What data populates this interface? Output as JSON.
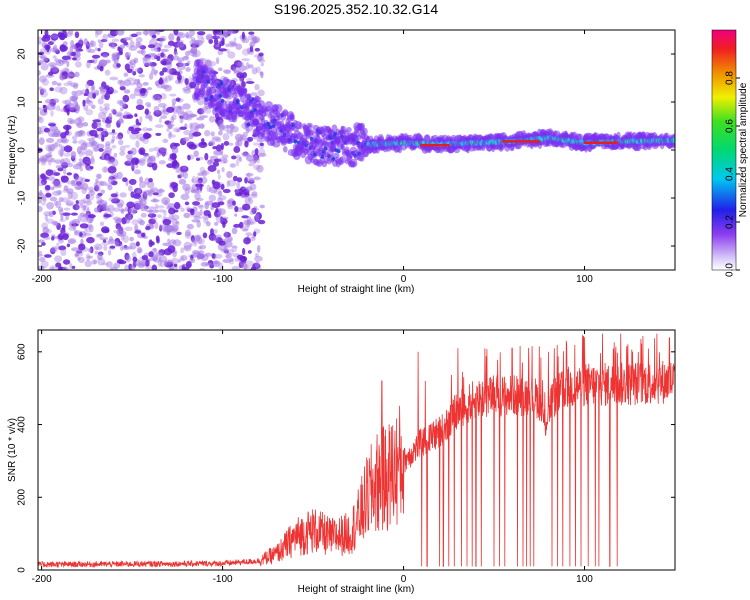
{
  "title": "S196.2025.352.10.32.G14",
  "colors": {
    "snr_line": "#ee3333",
    "scatter_noise": "#a77ce6",
    "scatter_dense": "#6a1fd6",
    "background": "#ffffff",
    "axis": "#000000"
  },
  "chart_data": [
    {
      "type": "heatmap",
      "name": "spectrogram",
      "title": "S196.2025.352.10.32.G14",
      "xlabel": "Height of straight line (km)",
      "ylabel": "Frequency (Hz)",
      "xlim": [
        -202,
        150
      ],
      "ylim": [
        -25,
        25
      ],
      "xticks": [
        -200,
        -100,
        0,
        100
      ],
      "yticks": [
        -20,
        -10,
        0,
        10,
        20
      ],
      "xtick_labels": [
        "-200",
        "-100",
        "0",
        "100"
      ],
      "ytick_labels": [
        "-20",
        "-10",
        "0",
        "10",
        "20"
      ],
      "description_points": {
        "noise_region_x": [
          -202,
          -78
        ],
        "noise_freq_range": [
          -25,
          25
        ],
        "signal_track": [
          {
            "x": -115,
            "y": 15
          },
          {
            "x": -105,
            "y": 12
          },
          {
            "x": -95,
            "y": 10
          },
          {
            "x": -85,
            "y": 8
          },
          {
            "x": -75,
            "y": 6
          },
          {
            "x": -65,
            "y": 4
          },
          {
            "x": -55,
            "y": 2
          },
          {
            "x": -45,
            "y": 1
          },
          {
            "x": -35,
            "y": 0.5
          },
          {
            "x": -25,
            "y": 1
          },
          {
            "x": -15,
            "y": 1.2
          },
          {
            "x": 0,
            "y": 1.5
          },
          {
            "x": 20,
            "y": 1.2
          },
          {
            "x": 40,
            "y": 1.5
          },
          {
            "x": 60,
            "y": 1.8
          },
          {
            "x": 80,
            "y": 2.5
          },
          {
            "x": 100,
            "y": 1.5
          },
          {
            "x": 120,
            "y": 1.8
          },
          {
            "x": 150,
            "y": 2
          }
        ],
        "peak_segments": [
          {
            "x0": 10,
            "x1": 25,
            "y": 1.0
          },
          {
            "x0": 55,
            "x1": 75,
            "y": 1.8
          },
          {
            "x0": 100,
            "x1": 118,
            "y": 1.5
          }
        ]
      }
    },
    {
      "type": "line",
      "name": "snr",
      "xlabel": "Height of straight line (km)",
      "ylabel": "SNR (10 * v/v)",
      "xlim": [
        -202,
        150
      ],
      "ylim": [
        0,
        660
      ],
      "xticks": [
        -200,
        -100,
        0,
        100
      ],
      "yticks": [
        0,
        200,
        400,
        600
      ],
      "xtick_labels": [
        "-200",
        "-100",
        "0",
        "100"
      ],
      "ytick_labels": [
        "0",
        "200",
        "400",
        "600"
      ],
      "baseline": [
        {
          "x": -202,
          "y": 15
        },
        {
          "x": -100,
          "y": 18
        },
        {
          "x": -80,
          "y": 25
        },
        {
          "x": -70,
          "y": 45
        },
        {
          "x": -60,
          "y": 90
        },
        {
          "x": -50,
          "y": 110
        },
        {
          "x": -40,
          "y": 90
        },
        {
          "x": -30,
          "y": 100
        },
        {
          "x": -25,
          "y": 140
        },
        {
          "x": -20,
          "y": 200
        },
        {
          "x": -15,
          "y": 240
        },
        {
          "x": -10,
          "y": 250
        },
        {
          "x": 0,
          "y": 300
        },
        {
          "x": 10,
          "y": 350
        },
        {
          "x": 20,
          "y": 380
        },
        {
          "x": 30,
          "y": 440
        },
        {
          "x": 40,
          "y": 470
        },
        {
          "x": 50,
          "y": 480
        },
        {
          "x": 60,
          "y": 480
        },
        {
          "x": 70,
          "y": 480
        },
        {
          "x": 75,
          "y": 470
        },
        {
          "x": 78,
          "y": 400
        },
        {
          "x": 82,
          "y": 470
        },
        {
          "x": 90,
          "y": 500
        },
        {
          "x": 100,
          "y": 510
        },
        {
          "x": 120,
          "y": 510
        },
        {
          "x": 150,
          "y": 520
        }
      ],
      "spikes_up": [
        {
          "x": -12,
          "y": 520
        },
        {
          "x": 8,
          "y": 600
        },
        {
          "x": 12,
          "y": 520
        },
        {
          "x": 30,
          "y": 610
        },
        {
          "x": 45,
          "y": 610
        },
        {
          "x": 60,
          "y": 610
        },
        {
          "x": 75,
          "y": 615
        },
        {
          "x": 80,
          "y": 600
        },
        {
          "x": 90,
          "y": 630
        },
        {
          "x": 100,
          "y": 640
        },
        {
          "x": 110,
          "y": 650
        },
        {
          "x": 120,
          "y": 650
        },
        {
          "x": 140,
          "y": 650
        },
        {
          "x": 147,
          "y": 640
        }
      ],
      "dropouts": [
        10,
        13,
        20,
        22,
        25,
        28,
        32,
        35,
        38,
        40,
        43,
        46,
        50,
        53,
        56,
        60,
        63,
        66,
        68,
        70,
        72,
        82,
        85,
        88,
        92,
        95,
        98,
        102,
        106,
        108,
        110,
        114,
        118,
        120
      ],
      "dropout_floor": 10
    }
  ],
  "colorbar": {
    "label": "Normalized spectral amplitude",
    "range": [
      0.0,
      1.0
    ],
    "ticks": [
      0.0,
      0.2,
      0.4,
      0.6,
      0.8
    ],
    "tick_labels": [
      "0.0",
      "0.2",
      "0.4",
      "0.6",
      "0.8"
    ]
  }
}
